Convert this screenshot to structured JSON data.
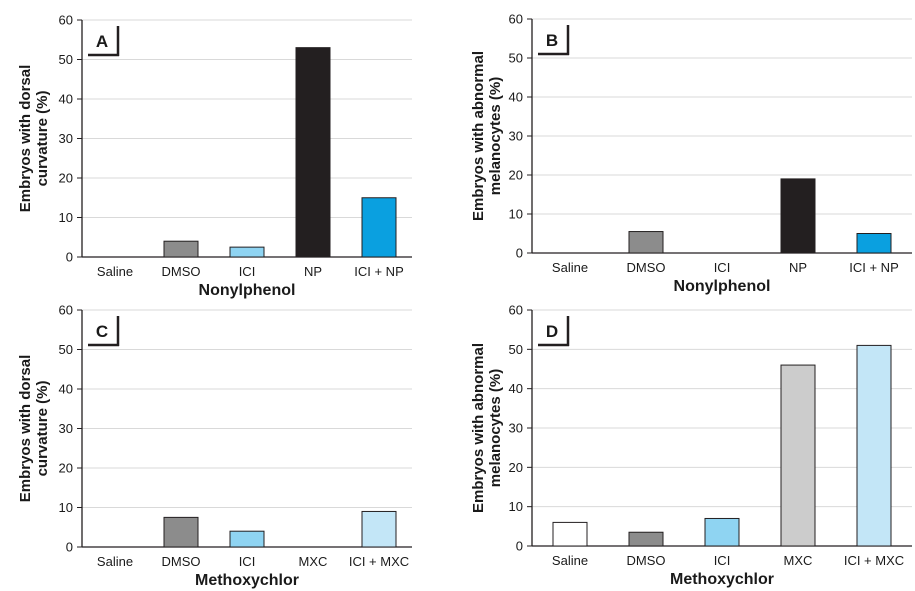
{
  "chart_data": [
    {
      "panel": "A",
      "type": "bar",
      "categories": [
        "Saline",
        "DMSO",
        "ICI",
        "NP",
        "ICI + NP"
      ],
      "values": [
        0,
        4,
        2.5,
        53,
        15
      ],
      "bar_colors": [
        "#ffffff",
        "#8c8c8c",
        "#8fd4f2",
        "#231f20",
        "#0aa0e0"
      ],
      "xlabel": "Nonylphenol",
      "ylabel": [
        "Embryos with dorsal",
        "curvature (%)"
      ],
      "ylim": [
        0,
        60
      ],
      "yticks": [
        0,
        10,
        20,
        30,
        40,
        50,
        60
      ],
      "grid": true,
      "grid_color": "#d9d9d9"
    },
    {
      "panel": "B",
      "type": "bar",
      "categories": [
        "Saline",
        "DMSO",
        "ICI",
        "NP",
        "ICI + NP"
      ],
      "values": [
        0,
        5.5,
        0,
        19,
        5
      ],
      "bar_colors": [
        "#ffffff",
        "#8c8c8c",
        "#8fd4f2",
        "#231f20",
        "#0aa0e0"
      ],
      "xlabel": "Nonylphenol",
      "ylabel": [
        "Embryos with abnormal",
        "melanocytes (%)"
      ],
      "ylim": [
        0,
        60
      ],
      "yticks": [
        0,
        10,
        20,
        30,
        40,
        50,
        60
      ],
      "grid": true,
      "grid_color": "#d9d9d9"
    },
    {
      "panel": "C",
      "type": "bar",
      "categories": [
        "Saline",
        "DMSO",
        "ICI",
        "MXC",
        "ICI + MXC"
      ],
      "values": [
        0,
        7.5,
        4,
        0,
        9
      ],
      "bar_colors": [
        "#ffffff",
        "#8c8c8c",
        "#8fd4f2",
        "#cccccc",
        "#c3e6f7"
      ],
      "xlabel": "Methoxychlor",
      "ylabel": [
        "Embryos with dorsal",
        "curvature (%)"
      ],
      "ylim": [
        0,
        60
      ],
      "yticks": [
        0,
        10,
        20,
        30,
        40,
        50,
        60
      ],
      "grid": true,
      "grid_color": "#d9d9d9"
    },
    {
      "panel": "D",
      "type": "bar",
      "categories": [
        "Saline",
        "DMSO",
        "ICI",
        "MXC",
        "ICI + MXC"
      ],
      "values": [
        6,
        3.5,
        7,
        46,
        51
      ],
      "bar_colors": [
        "#ffffff",
        "#8c8c8c",
        "#8fd4f2",
        "#cccccc",
        "#c3e6f7"
      ],
      "xlabel": "Methoxychlor",
      "ylabel": [
        "Embryos with abnormal",
        "melanocytes (%)"
      ],
      "ylim": [
        0,
        60
      ],
      "yticks": [
        0,
        10,
        20,
        30,
        40,
        50,
        60
      ],
      "grid": true,
      "grid_color": "#d9d9d9"
    }
  ]
}
